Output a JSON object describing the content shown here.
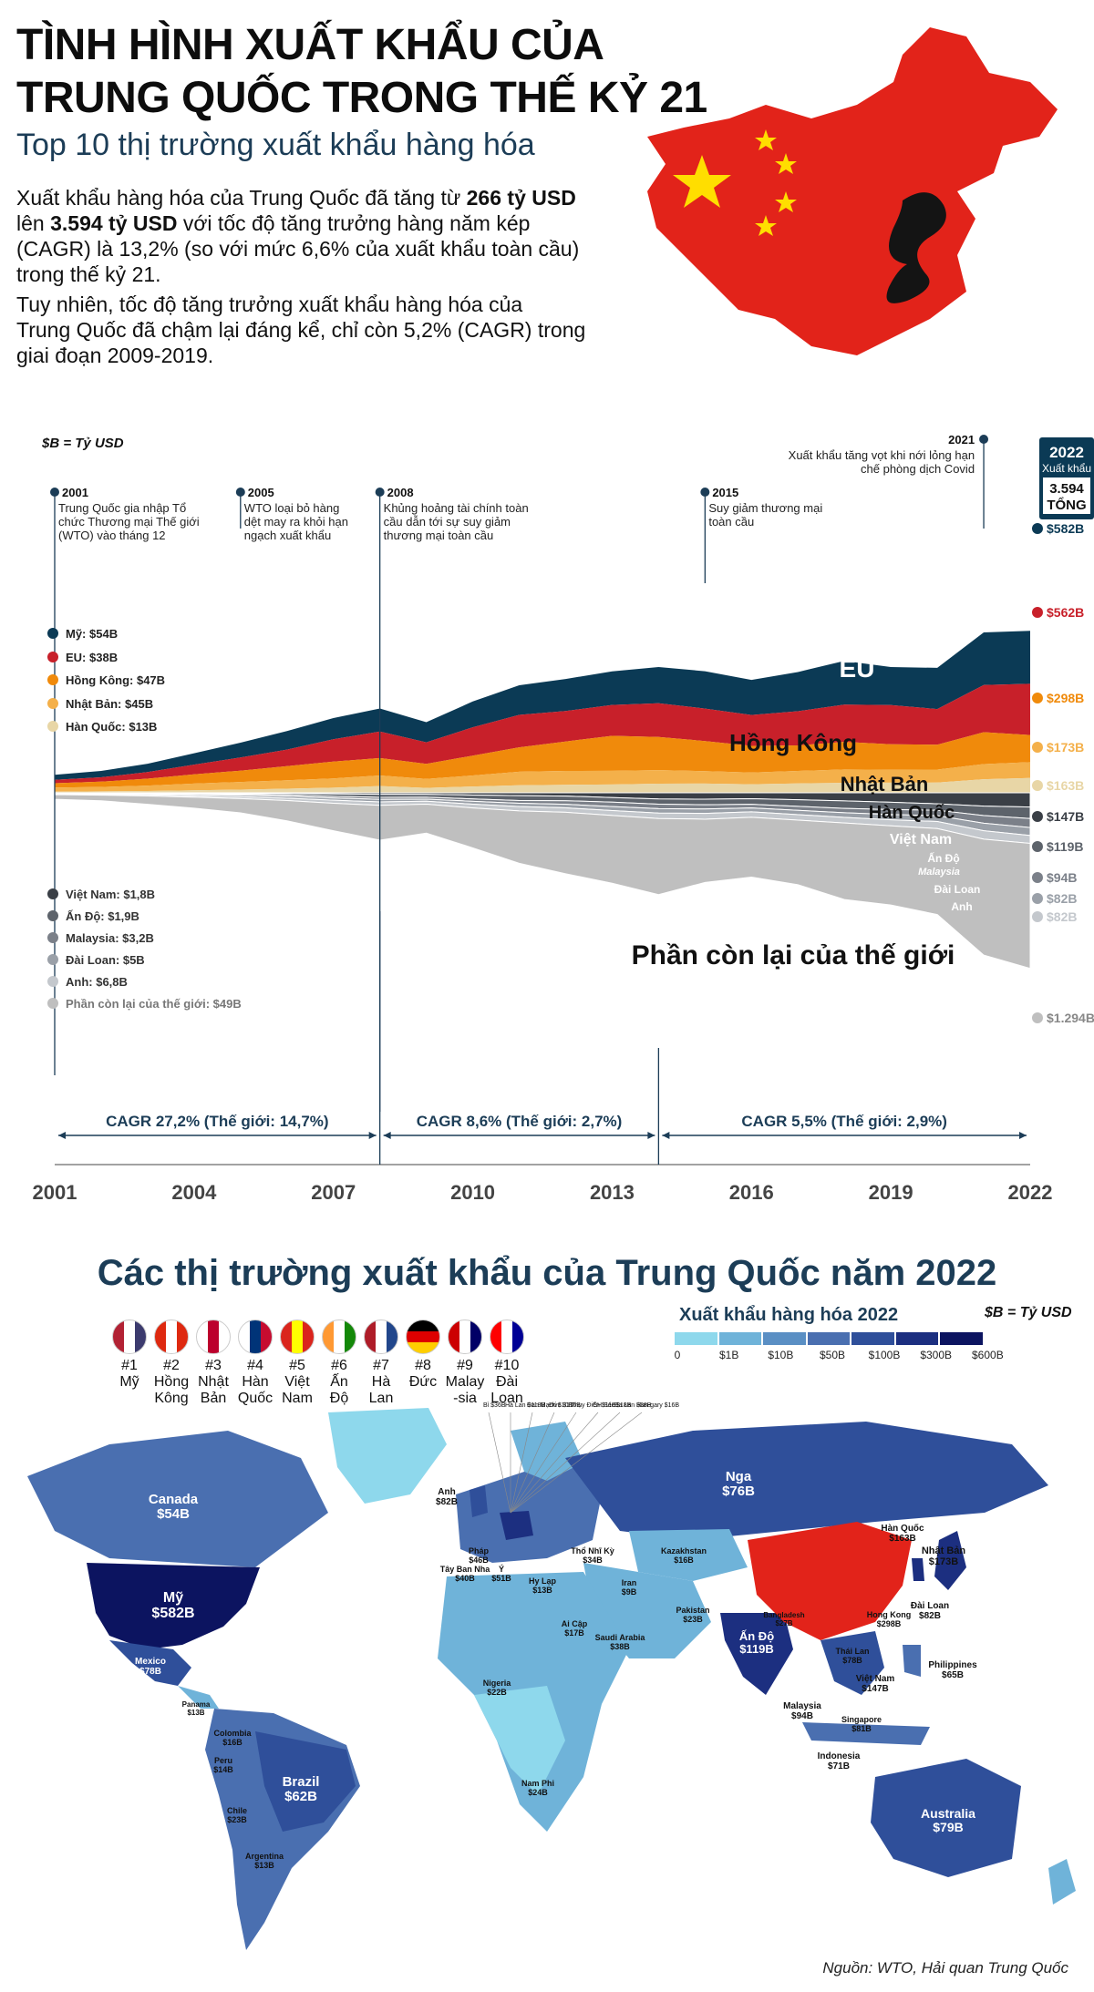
{
  "header": {
    "title_line1": "TÌNH HÌNH XUẤT KHẨU CỦA",
    "title_line2": "TRUNG QUỐC TRONG THẾ KỶ 21",
    "subtitle": "Top 10 thị trường xuất khẩu hàng hóa"
  },
  "intro": {
    "p1_a": "Xuất khẩu hàng hóa của Trung Quốc đã tăng từ ",
    "p1_b": "266 tỷ USD",
    "p1_c": "lên ",
    "p1_d": "3.594 tỷ USD",
    "p1_e": " với tốc độ tăng trưởng hàng năm kép",
    "p1_f": "(CAGR) là 13,2% (so với mức 6,6% của xuất khẩu toàn cầu)",
    "p1_g": "trong thế kỷ 21.",
    "p2_a": "Tuy nhiên, tốc độ tăng trưởng xuất khẩu hàng hóa của",
    "p2_b": "Trung Quốc đã chậm lại đáng kể, chỉ còn 5,2% (CAGR) trong",
    "p2_c": "giai đoạn 2009-2019."
  },
  "colors": {
    "us": "#0b3a55",
    "eu": "#c8202a",
    "hk": "#f08a0b",
    "jp": "#f4b04a",
    "kr": "#e8d6a6",
    "vn": "#3a3f46",
    "in": "#5d636b",
    "my": "#7b8089",
    "tw": "#9aa0a8",
    "uk": "#c4c8cd",
    "rest": "#bfbfbf",
    "china": "#e2231a",
    "navy": "#1c3d57"
  },
  "chart_data": {
    "type": "area",
    "unit_note": "$B = Tỷ USD",
    "x": [
      2001,
      2002,
      2003,
      2004,
      2005,
      2006,
      2007,
      2008,
      2009,
      2010,
      2011,
      2012,
      2013,
      2014,
      2015,
      2016,
      2017,
      2018,
      2019,
      2020,
      2021,
      2022
    ],
    "x_ticks": [
      "2001",
      "2004",
      "2007",
      "2010",
      "2013",
      "2016",
      "2019",
      "2022"
    ],
    "series": [
      {
        "name": "Mỹ",
        "start_label": "Mỹ: $54B",
        "end_label": "$582B",
        "values": [
          54,
          70,
          92,
          125,
          163,
          203,
          233,
          252,
          221,
          283,
          325,
          352,
          369,
          397,
          410,
          385,
          430,
          480,
          418,
          452,
          577,
          582
        ]
      },
      {
        "name": "EU",
        "start_label": "EU: $38B",
        "end_label": "$562B",
        "values": [
          38,
          48,
          72,
          107,
          144,
          182,
          245,
          292,
          236,
          311,
          356,
          334,
          339,
          371,
          356,
          339,
          375,
          409,
          429,
          391,
          518,
          562
        ]
      },
      {
        "name": "Hồng Kông",
        "start_label": "Hồng Kông: $47B",
        "end_label": "$298B",
        "values": [
          47,
          58,
          76,
          101,
          124,
          155,
          184,
          191,
          166,
          218,
          268,
          323,
          384,
          363,
          331,
          292,
          280,
          303,
          279,
          273,
          350,
          298
        ]
      },
      {
        "name": "Nhật Bản",
        "start_label": "Nhật Bản: $45B",
        "end_label": "$173B",
        "values": [
          45,
          48,
          59,
          73,
          84,
          92,
          102,
          116,
          98,
          121,
          148,
          152,
          150,
          149,
          136,
          129,
          137,
          147,
          143,
          143,
          166,
          173
        ]
      },
      {
        "name": "Hàn Quốc",
        "start_label": "Hàn Quốc: $13B",
        "end_label": "$163B",
        "values": [
          13,
          16,
          20,
          28,
          35,
          45,
          56,
          74,
          54,
          69,
          83,
          88,
          91,
          100,
          101,
          94,
          103,
          109,
          111,
          112,
          149,
          163
        ]
      },
      {
        "name": "Việt Nam",
        "start_label": "Việt Nam: $1,8B",
        "end_label": "$147B",
        "values": [
          1.8,
          2.1,
          3.2,
          4.3,
          5.6,
          7.5,
          12,
          15,
          16,
          23,
          29,
          34,
          49,
          64,
          66,
          61,
          72,
          84,
          98,
          114,
          138,
          147
        ]
      },
      {
        "name": "Ấn Độ",
        "start_label": "Ấn Độ: $1,9B",
        "end_label": "$119B",
        "values": [
          1.9,
          2.7,
          3.3,
          5.9,
          8.9,
          14,
          24,
          32,
          30,
          41,
          51,
          48,
          48,
          54,
          58,
          58,
          68,
          77,
          75,
          67,
          98,
          119
        ]
      },
      {
        "name": "Malaysia",
        "start_label": "Malaysia: $3,2B",
        "end_label": "$94B",
        "values": [
          3.2,
          4.9,
          6.1,
          8.1,
          10,
          14,
          18,
          21,
          20,
          24,
          28,
          37,
          46,
          46,
          44,
          38,
          42,
          45,
          52,
          56,
          79,
          94
        ]
      },
      {
        "name": "Đài Loan",
        "start_label": "Đài Loan: $5B",
        "end_label": "$82B",
        "values": [
          5,
          6.6,
          9,
          13,
          17,
          21,
          23,
          26,
          21,
          30,
          35,
          37,
          41,
          46,
          45,
          40,
          44,
          49,
          55,
          60,
          78,
          82
        ]
      },
      {
        "name": "Anh",
        "start_label": "Anh: $6,8B",
        "end_label": "$82B",
        "values": [
          6.8,
          8.1,
          11,
          15,
          19,
          24,
          32,
          36,
          31,
          39,
          44,
          46,
          51,
          57,
          60,
          56,
          57,
          57,
          62,
          73,
          87,
          82
        ]
      },
      {
        "name": "Phần còn lại của thế giới",
        "start_label": "Phần còn lại của thế giới: $49B",
        "end_label": "$1.294B",
        "values": [
          49,
          58,
          86,
          113,
          147,
          210,
          283,
          360,
          300,
          413,
          543,
          636,
          701,
          787,
          655,
          620,
          668,
          793,
          820,
          890,
          1200,
          1294
        ]
      }
    ],
    "area_labels": [
      "Mỹ",
      "EU",
      "Hồng Kông",
      "Nhật Bản",
      "Hàn Quốc",
      "Việt Nam",
      "Ấn Độ",
      "Malaysia",
      "Đài Loan",
      "Anh",
      "Phần còn lại của thế giới"
    ],
    "events": [
      {
        "year": "2001",
        "text1": "Trung Quốc gia nhập Tổ",
        "text2": "chức Thương mại Thế giới",
        "text3": "(WTO) vào tháng 12"
      },
      {
        "year": "2005",
        "text1": "WTO loại bỏ hàng",
        "text2": "dệt may ra khỏi hạn",
        "text3": "ngạch xuất khẩu"
      },
      {
        "year": "2008",
        "text1": "Khủng hoảng tài chính toàn",
        "text2": "cầu dẫn tới sự suy giảm",
        "text3": "thương mại toàn cầu"
      },
      {
        "year": "2015",
        "text1": "Suy giảm thương mại",
        "text2": "toàn cầu",
        "text3": ""
      },
      {
        "year": "2021",
        "text1": "Xuất khẩu tăng vọt khi nới lỏng hạn",
        "text2": "chế phòng dịch Covid",
        "text3": ""
      }
    ],
    "total_box": {
      "year": "2022",
      "label": "Xuất khẩu",
      "value": "3.594",
      "total": "TỔNG"
    },
    "cagr": [
      "CAGR 27,2% (Thế giới: 14,7%)",
      "CAGR 8,6% (Thế giới: 2,7%)",
      "CAGR 5,5% (Thế giới: 2,9%)"
    ]
  },
  "map": {
    "title": "Các thị trường xuất khẩu của Trung Quốc năm 2022",
    "legend_title": "Xuất khẩu hàng hóa 2022",
    "unit_note": "$B = Tỷ USD",
    "legend_ticks": [
      "0",
      "$1B",
      "$10B",
      "$50B",
      "$100B",
      "$300B",
      "$600B"
    ],
    "legend_colors": [
      "#8ed8ec",
      "#6fb3d9",
      "#5a8fc4",
      "#4a6fb0",
      "#2f4f9a",
      "#1c2f80",
      "#0c1460"
    ],
    "flags": [
      {
        "rank": "#1",
        "name1": "Mỹ",
        "name2": ""
      },
      {
        "rank": "#2",
        "name1": "Hồng",
        "name2": "Kông"
      },
      {
        "rank": "#3",
        "name1": "Nhật",
        "name2": "Bản"
      },
      {
        "rank": "#4",
        "name1": "Hàn",
        "name2": "Quốc"
      },
      {
        "rank": "#5",
        "name1": "Việt",
        "name2": "Nam"
      },
      {
        "rank": "#6",
        "name1": "Ấn",
        "name2": "Độ"
      },
      {
        "rank": "#7",
        "name1": "Hà",
        "name2": "Lan"
      },
      {
        "rank": "#8",
        "name1": "Đức",
        "name2": ""
      },
      {
        "rank": "#9",
        "name1": "Malay",
        "name2": "-sia"
      },
      {
        "rank": "#10",
        "name1": "Đài",
        "name2": "Loan"
      }
    ],
    "labels": [
      {
        "name": "Canada",
        "value": "$54B"
      },
      {
        "name": "Mỹ",
        "value": "$582B"
      },
      {
        "name": "Mexico",
        "value": "$78B"
      },
      {
        "name": "Brazil",
        "value": "$62B"
      },
      {
        "name": "Nga",
        "value": "$76B"
      },
      {
        "name": "Ấn Độ",
        "value": "$119B"
      },
      {
        "name": "Australia",
        "value": "$79B"
      },
      {
        "name": "Nhật Bản",
        "value": "$173B"
      },
      {
        "name": "Hàn Quốc",
        "value": "$163B"
      },
      {
        "name": "Đài Loan",
        "value": "$82B"
      },
      {
        "name": "Việt Nam",
        "value": "$147B"
      },
      {
        "name": "Philippines",
        "value": "$65B"
      },
      {
        "name": "Malaysia",
        "value": "$94B"
      },
      {
        "name": "Indonesia",
        "value": "$71B"
      },
      {
        "name": "Singapore",
        "value": "$81B"
      },
      {
        "name": "Thái Lan",
        "value": "$78B"
      },
      {
        "name": "Hong Kong",
        "value": "$298B"
      },
      {
        "name": "Anh",
        "value": "$82B"
      },
      {
        "name": "Pháp",
        "value": "$46B"
      },
      {
        "name": "Tây Ban Nha",
        "value": "$40B"
      },
      {
        "name": "Ý",
        "value": "$51B"
      },
      {
        "name": "Hy Lạp",
        "value": "$13B"
      },
      {
        "name": "Thổ Nhĩ Kỳ",
        "value": "$34B"
      },
      {
        "name": "Kazakhstan",
        "value": "$16B"
      },
      {
        "name": "Iran",
        "value": "$9B"
      },
      {
        "name": "Ai Cập",
        "value": "$17B"
      },
      {
        "name": "Saudi Arabia",
        "value": "$38B"
      },
      {
        "name": "Pakistan",
        "value": "$23B"
      },
      {
        "name": "Bangladesh",
        "value": "$27B"
      },
      {
        "name": "Nigeria",
        "value": "$22B"
      },
      {
        "name": "Nam Phi",
        "value": "$24B"
      },
      {
        "name": "Panama",
        "value": "$13B"
      },
      {
        "name": "Colombia",
        "value": "$16B"
      },
      {
        "name": "Peru",
        "value": "$14B"
      },
      {
        "name": "Chile",
        "value": "$23B"
      },
      {
        "name": "Argentina",
        "value": "$13B"
      }
    ],
    "europe_labels": [
      "Bỉ $36B",
      "Hà Lan $118B",
      "Đan Mạch $10B",
      "Đức $116B",
      "Thụy Điển $11B",
      "CH Séc $18B",
      "Ba Lan $38B",
      "Hun-gary $16B"
    ]
  },
  "source": "Nguồn: WTO, Hải quan Trung Quốc"
}
